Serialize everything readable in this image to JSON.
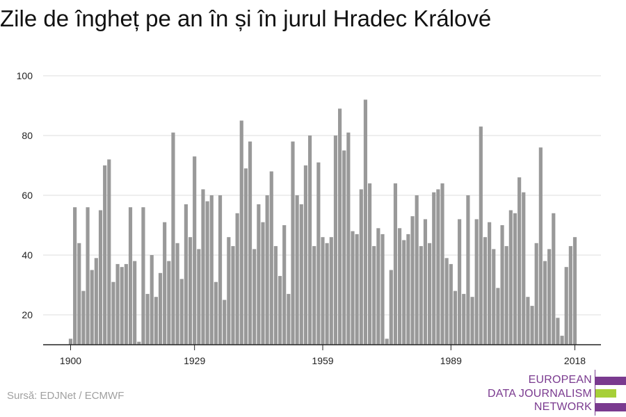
{
  "title": "Zile de îngheț pe an în și în jurul Hradec Králové",
  "source": "Sursă: EDJNet / ECMWF",
  "logo": {
    "lines": [
      "EUROPEAN",
      "DATA JOURNALISM",
      "NETWORK"
    ],
    "colors": {
      "text": "#7a3a8f",
      "purple": "#7a3a8f",
      "green": "#a6cf38"
    }
  },
  "colors": {
    "bar": "#999999",
    "grid": "#dddddd",
    "axis": "#222222"
  },
  "chart_data": {
    "type": "bar",
    "x_start": 1900,
    "x_end": 2018,
    "ylim": [
      10,
      100
    ],
    "yticks": [
      20,
      40,
      60,
      80,
      100
    ],
    "xticks": [
      1900,
      1929,
      1959,
      1989,
      2018
    ],
    "grid": true,
    "values": [
      12,
      56,
      44,
      28,
      56,
      35,
      39,
      55,
      70,
      72,
      31,
      37,
      36,
      37,
      56,
      38,
      11,
      56,
      27,
      40,
      26,
      34,
      51,
      38,
      81,
      44,
      32,
      57,
      46,
      73,
      42,
      62,
      58,
      60,
      31,
      60,
      25,
      46,
      43,
      54,
      85,
      69,
      78,
      42,
      57,
      51,
      60,
      68,
      43,
      33,
      50,
      27,
      78,
      60,
      57,
      70,
      80,
      43,
      71,
      46,
      44,
      46,
      80,
      89,
      75,
      81,
      48,
      47,
      62,
      92,
      64,
      43,
      49,
      47,
      12,
      35,
      64,
      49,
      45,
      47,
      53,
      60,
      43,
      52,
      44,
      61,
      62,
      64,
      39,
      37,
      28,
      52,
      27,
      60,
      26,
      52,
      83,
      46,
      51,
      42,
      29,
      50,
      43,
      55,
      54,
      66,
      61,
      26,
      23,
      44,
      76,
      38,
      42,
      54,
      19,
      13,
      36,
      43,
      46
    ]
  }
}
